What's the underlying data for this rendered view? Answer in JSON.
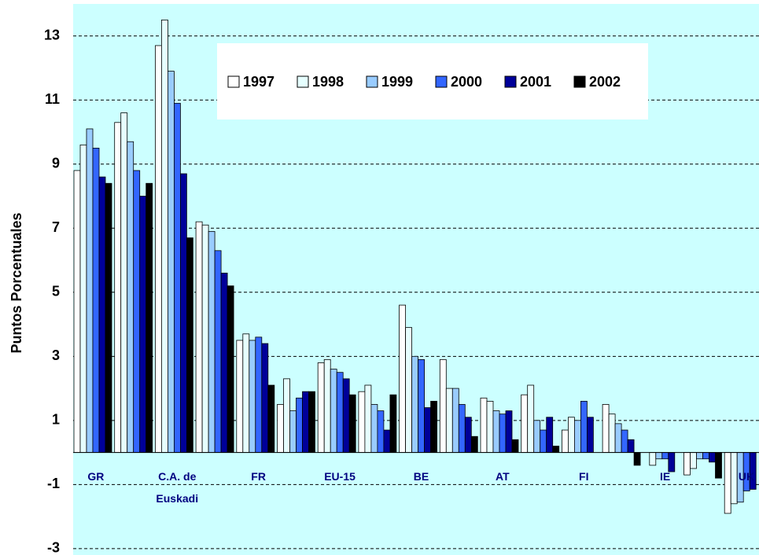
{
  "chart_data": {
    "type": "bar",
    "y_label": "Puntos Porcentuales",
    "categories": [
      "GR",
      null,
      "C.A. de Euskadi",
      null,
      "FR",
      null,
      "EU-15",
      null,
      "BE",
      null,
      "AT",
      null,
      "FI",
      null,
      "IE",
      null,
      "UK"
    ],
    "series": [
      {
        "name": "1997",
        "color": "#ffffff",
        "values": [
          8.8,
          10.3,
          12.7,
          7.2,
          3.5,
          1.5,
          2.8,
          1.9,
          4.6,
          2.9,
          1.7,
          1.8,
          0.7,
          1.5,
          0,
          -0.7,
          -1.9
        ]
      },
      {
        "name": "1998",
        "color": "#e6ffff",
        "values": [
          9.6,
          10.6,
          13.5,
          7.1,
          3.7,
          2.3,
          2.9,
          2.1,
          3.9,
          2.0,
          1.6,
          2.1,
          1.1,
          1.2,
          -0.4,
          -0.5,
          -1.6
        ]
      },
      {
        "name": "1999",
        "color": "#99ccff",
        "values": [
          10.1,
          9.7,
          11.9,
          6.9,
          3.5,
          1.3,
          2.6,
          1.5,
          3.0,
          2.0,
          1.3,
          1.0,
          1.0,
          0.9,
          -0.2,
          -0.2,
          -1.55
        ]
      },
      {
        "name": "2000",
        "color": "#3366ff",
        "values": [
          9.5,
          8.8,
          10.9,
          6.3,
          3.6,
          1.7,
          2.5,
          1.3,
          2.9,
          1.5,
          1.2,
          0.7,
          1.6,
          0.7,
          -0.2,
          -0.2,
          -1.2
        ]
      },
      {
        "name": "2001",
        "color": "#000099",
        "values": [
          8.6,
          8.0,
          8.7,
          5.6,
          3.4,
          1.9,
          2.3,
          0.7,
          1.4,
          1.1,
          1.3,
          1.1,
          1.1,
          0.4,
          -0.6,
          -0.3,
          -1.15
        ]
      },
      {
        "name": "2002",
        "color": "#000000",
        "values": [
          8.4,
          8.4,
          6.7,
          5.2,
          2.1,
          1.9,
          1.8,
          1.8,
          1.6,
          0.5,
          0.4,
          0.2,
          0,
          -0.4,
          0,
          -0.8,
          null
        ]
      }
    ],
    "ylim": [
      -3.2,
      14
    ],
    "yticks": [
      -3,
      -1,
      1,
      3,
      5,
      7,
      9,
      11,
      13
    ],
    "grid": true,
    "legend": "top"
  }
}
